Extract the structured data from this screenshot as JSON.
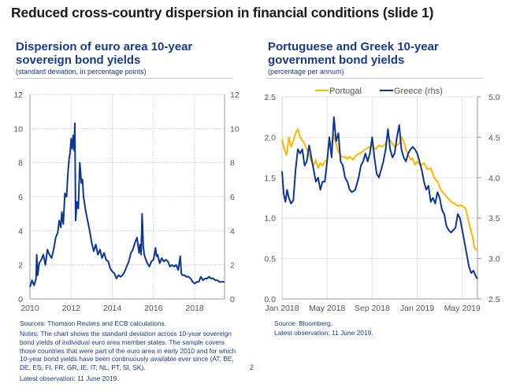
{
  "slide": {
    "title": "Reduced cross-country dispersion in financial conditions (slide 1)",
    "page_number": "2"
  },
  "colors": {
    "title_blue": "#173a8c",
    "series_blue": "#0a3696",
    "series_yellow": "#ffb400",
    "grid": "#d9d9d9",
    "axis": "#999999"
  },
  "left": {
    "title_line1": "Dispersion of euro area 10-year",
    "title_line2": "sovereign bond yields",
    "subtitle": "(standard deviation, in percentage points)",
    "sources": "Sources: Thomson Reuters and ECB calculations.",
    "notes": [
      "Notes: The chart shows the standard deviation across 10-year sovereign",
      "bond yields of individual euro area member states. The sample covers",
      "those countries that were part of the euro area in early 2010 and for which",
      "10-year bond yields have been continuously available ever since (AT, BE,",
      "DE, ES, FI, FR, GR, IE, IT, NL, PT, SI, SK)."
    ],
    "latest": "Latest observation: 11 June 2019."
  },
  "right": {
    "title_line1": "Portuguese and Greek 10-year",
    "title_line2": "government bond yields",
    "subtitle": "(percentage per annum)",
    "sources": "Source: Bloomberg.",
    "latest": "Latest observation: 11 June 2019."
  },
  "chart_data": [
    {
      "type": "line",
      "title": "Dispersion of euro area 10-year sovereign bond yields",
      "ylabel": "standard deviation, in percentage points",
      "xlim": [
        2010.0,
        2019.45
      ],
      "ylim": [
        0,
        12
      ],
      "yticks": [
        0,
        2,
        4,
        6,
        8,
        10,
        12
      ],
      "yticks_right": [
        0,
        2,
        4,
        6,
        8,
        10,
        12
      ],
      "xticks": [
        2010,
        2012,
        2014,
        2016,
        2018
      ],
      "xtick_labels": [
        "2010",
        "2012",
        "2014",
        "2016",
        "2018"
      ],
      "grid": true,
      "series": [
        {
          "name": "Dispersion",
          "color": "#0a3696",
          "x": [
            2010.0,
            2010.1,
            2010.2,
            2010.3,
            2010.33,
            2010.38,
            2010.45,
            2010.55,
            2010.65,
            2010.75,
            2010.85,
            2010.95,
            2011.05,
            2011.15,
            2011.25,
            2011.35,
            2011.42,
            2011.5,
            2011.55,
            2011.62,
            2011.7,
            2011.78,
            2011.85,
            2011.9,
            2011.95,
            2012.0,
            2012.05,
            2012.1,
            2012.15,
            2012.18,
            2012.22,
            2012.28,
            2012.35,
            2012.42,
            2012.5,
            2012.55,
            2012.6,
            2012.7,
            2012.8,
            2012.9,
            2013.0,
            2013.1,
            2013.2,
            2013.3,
            2013.4,
            2013.5,
            2013.6,
            2013.7,
            2013.8,
            2013.9,
            2014.0,
            2014.1,
            2014.2,
            2014.3,
            2014.4,
            2014.5,
            2014.6,
            2014.7,
            2014.8,
            2014.9,
            2015.0,
            2015.1,
            2015.2,
            2015.3,
            2015.35,
            2015.4,
            2015.45,
            2015.5,
            2015.55,
            2015.6,
            2015.7,
            2015.8,
            2015.9,
            2016.0,
            2016.1,
            2016.15,
            2016.2,
            2016.3,
            2016.4,
            2016.5,
            2016.6,
            2016.7,
            2016.8,
            2016.9,
            2017.0,
            2017.1,
            2017.2,
            2017.3,
            2017.35,
            2017.4,
            2017.5,
            2017.6,
            2017.7,
            2017.8,
            2017.9,
            2018.0,
            2018.1,
            2018.2,
            2018.3,
            2018.4,
            2018.5,
            2018.6,
            2018.7,
            2018.8,
            2018.9,
            2019.0,
            2019.1,
            2019.2,
            2019.3,
            2019.45
          ],
          "y": [
            0.7,
            1.1,
            0.8,
            1.2,
            2.6,
            1.4,
            2.1,
            2.3,
            2.6,
            2.0,
            2.9,
            2.6,
            2.4,
            2.9,
            3.6,
            3.9,
            4.6,
            4.2,
            5.1,
            4.4,
            6.2,
            6.0,
            7.5,
            8.2,
            8.6,
            9.4,
            8.8,
            9.6,
            8.7,
            10.3,
            4.6,
            5.7,
            5.3,
            8.0,
            6.8,
            7.0,
            6.0,
            5.2,
            4.6,
            4.0,
            3.3,
            2.8,
            3.2,
            2.6,
            2.9,
            2.4,
            2.7,
            2.3,
            2.2,
            1.8,
            1.6,
            1.5,
            1.2,
            1.4,
            1.3,
            1.4,
            1.6,
            1.9,
            2.2,
            2.7,
            2.9,
            3.3,
            3.6,
            2.7,
            3.2,
            2.6,
            5.0,
            3.1,
            2.6,
            2.4,
            2.1,
            1.9,
            2.2,
            2.3,
            3.0,
            2.5,
            2.6,
            2.1,
            2.4,
            2.2,
            2.3,
            2.2,
            1.9,
            2.0,
            1.9,
            2.0,
            1.7,
            2.5,
            1.5,
            1.4,
            1.4,
            1.3,
            1.3,
            1.2,
            1.0,
            0.9,
            1.0,
            1.0,
            1.3,
            1.1,
            1.2,
            1.2,
            1.3,
            1.2,
            1.2,
            1.1,
            1.1,
            1.0,
            1.0,
            1.0
          ]
        }
      ]
    },
    {
      "type": "line",
      "title": "Portuguese and Greek 10-year government bond yields",
      "ylabel": "percentage per annum",
      "ylabel_right": "rhs",
      "xlim": [
        "2018-01-01",
        "2019-06-11"
      ],
      "ylim": [
        0.0,
        2.5
      ],
      "ylim_right": [
        2.5,
        5.0
      ],
      "yticks": [
        0.0,
        0.5,
        1.0,
        1.5,
        2.0,
        2.5
      ],
      "ytick_labels": [
        "0.0",
        "0.5",
        "1.0",
        "1.5",
        "2.0",
        "2.5"
      ],
      "yticks_right": [
        2.5,
        3.0,
        3.5,
        4.0,
        4.5,
        5.0
      ],
      "ytick_labels_right": [
        "2.5",
        "3.0",
        "3.5",
        "4.0",
        "4.5",
        "5.0"
      ],
      "xtick_labels": [
        "Jan 2018",
        "May 2018",
        "Sep 2018",
        "Jan 2019",
        "May 2019"
      ],
      "xtick_months": [
        0,
        4,
        8,
        12,
        16
      ],
      "x_end_months": 17.35,
      "grid": true,
      "legend": "top",
      "series": [
        {
          "name": "Portugal",
          "axis": "left",
          "color": "#ffb400",
          "x_months": [
            0.0,
            0.2,
            0.4,
            0.6,
            0.8,
            1.0,
            1.2,
            1.4,
            1.6,
            1.8,
            2.0,
            2.2,
            2.4,
            2.6,
            2.8,
            3.0,
            3.2,
            3.4,
            3.6,
            3.8,
            4.0,
            4.2,
            4.4,
            4.6,
            4.8,
            5.0,
            5.2,
            5.4,
            5.6,
            5.8,
            6.0,
            6.3,
            6.6,
            6.9,
            7.2,
            7.5,
            7.8,
            8.0,
            8.3,
            8.6,
            8.9,
            9.2,
            9.4,
            9.6,
            9.8,
            10.0,
            10.2,
            10.4,
            10.6,
            10.8,
            11.0,
            11.2,
            11.4,
            11.6,
            11.8,
            12.0,
            12.3,
            12.6,
            12.9,
            13.2,
            13.5,
            13.8,
            14.1,
            14.4,
            14.7,
            15.0,
            15.3,
            15.6,
            15.9,
            16.1,
            16.3,
            16.5,
            16.7,
            16.9,
            17.1,
            17.35
          ],
          "y": [
            1.98,
            1.85,
            1.78,
            2.0,
            1.88,
            1.95,
            2.05,
            2.1,
            2.0,
            1.96,
            1.92,
            1.85,
            1.78,
            1.7,
            1.65,
            1.72,
            1.62,
            1.68,
            1.65,
            1.7,
            1.72,
            1.96,
            1.9,
            2.03,
            1.92,
            1.82,
            1.78,
            1.75,
            1.76,
            1.73,
            1.76,
            1.72,
            1.78,
            1.8,
            1.83,
            1.86,
            1.88,
            1.9,
            1.85,
            1.9,
            1.88,
            1.92,
            2.03,
            1.96,
            1.92,
            1.88,
            1.9,
            1.92,
            2.0,
            1.95,
            1.85,
            1.78,
            1.72,
            1.74,
            1.66,
            1.7,
            1.65,
            1.68,
            1.6,
            1.62,
            1.5,
            1.45,
            1.35,
            1.3,
            1.25,
            1.2,
            1.18,
            1.15,
            1.16,
            1.14,
            1.12,
            1.0,
            0.88,
            0.78,
            0.63,
            0.6
          ]
        },
        {
          "name": "Greece (rhs)",
          "axis": "right",
          "color": "#0a3696",
          "x_months": [
            0.0,
            0.15,
            0.3,
            0.45,
            0.6,
            0.8,
            1.0,
            1.2,
            1.4,
            1.6,
            1.8,
            2.0,
            2.2,
            2.4,
            2.6,
            2.8,
            3.0,
            3.2,
            3.4,
            3.6,
            3.8,
            4.0,
            4.2,
            4.4,
            4.6,
            4.8,
            5.0,
            5.2,
            5.4,
            5.6,
            5.8,
            6.0,
            6.2,
            6.5,
            6.8,
            7.0,
            7.2,
            7.4,
            7.6,
            7.8,
            8.0,
            8.2,
            8.4,
            8.6,
            8.8,
            9.0,
            9.2,
            9.4,
            9.6,
            9.8,
            10.0,
            10.2,
            10.4,
            10.6,
            10.8,
            11.0,
            11.2,
            11.4,
            11.6,
            11.8,
            12.0,
            12.2,
            12.4,
            12.6,
            12.8,
            13.0,
            13.2,
            13.4,
            13.6,
            13.8,
            14.0,
            14.2,
            14.4,
            14.6,
            14.8,
            15.0,
            15.2,
            15.4,
            15.6,
            15.8,
            16.0,
            16.2,
            16.4,
            16.6,
            16.8,
            17.0,
            17.2,
            17.35
          ],
          "y": [
            4.08,
            3.8,
            3.7,
            3.85,
            3.75,
            3.68,
            3.72,
            4.1,
            4.35,
            4.3,
            4.35,
            4.15,
            4.2,
            4.4,
            4.25,
            4.1,
            3.95,
            4.0,
            3.85,
            3.95,
            3.95,
            4.2,
            4.5,
            4.25,
            4.75,
            4.45,
            4.55,
            4.2,
            4.15,
            4.0,
            3.95,
            3.85,
            3.82,
            3.85,
            4.0,
            4.15,
            4.2,
            4.3,
            4.2,
            4.3,
            4.5,
            4.25,
            4.05,
            4.0,
            4.1,
            4.2,
            4.35,
            4.6,
            4.35,
            4.25,
            4.3,
            4.5,
            4.65,
            4.35,
            4.25,
            4.2,
            4.3,
            4.35,
            4.38,
            4.35,
            4.3,
            4.2,
            4.1,
            3.95,
            3.85,
            3.9,
            3.7,
            3.75,
            3.68,
            3.82,
            3.75,
            3.6,
            3.55,
            3.4,
            3.35,
            3.32,
            3.35,
            3.38,
            3.55,
            3.5,
            3.35,
            3.2,
            3.05,
            2.9,
            2.82,
            2.85,
            2.78,
            2.75
          ]
        }
      ]
    }
  ]
}
